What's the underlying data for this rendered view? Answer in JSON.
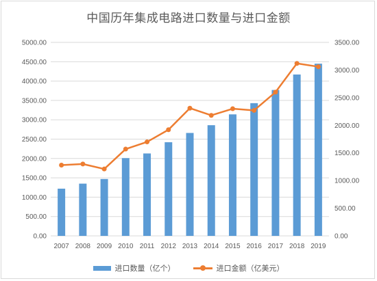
{
  "chart_data": {
    "type": "bar+line",
    "title": "中国历年集成电路进口数量与进口金额",
    "categories": [
      "2007",
      "2008",
      "2009",
      "2010",
      "2011",
      "2012",
      "2013",
      "2014",
      "2015",
      "2016",
      "2017",
      "2018",
      "2019"
    ],
    "series": [
      {
        "name": "进口数量（亿个）",
        "type": "bar",
        "axis": "left",
        "color": "#5b9bd5",
        "values": [
          1220,
          1350,
          1470,
          2010,
          2130,
          2420,
          2660,
          2860,
          3140,
          3430,
          3770,
          4170,
          4450
        ]
      },
      {
        "name": "进口金额（亿美元）",
        "type": "line",
        "axis": "right",
        "color": "#ed7d31",
        "values": [
          1280,
          1300,
          1210,
          1570,
          1700,
          1920,
          2310,
          2180,
          2300,
          2270,
          2600,
          3120,
          3060
        ]
      }
    ],
    "y_left": {
      "min": 0,
      "max": 5000,
      "step": 500,
      "tick_labels": [
        "0.00",
        "500.00",
        "1000.00",
        "1500.00",
        "2000.00",
        "2500.00",
        "3000.00",
        "3500.00",
        "4000.00",
        "4500.00",
        "5000.00"
      ]
    },
    "y_right": {
      "min": 0,
      "max": 3500,
      "step": 500,
      "tick_labels": [
        "0.00",
        "500.00",
        "1000.00",
        "1500.00",
        "2000.00",
        "2500.00",
        "3000.00",
        "3500.00"
      ]
    },
    "grid": true,
    "legend_position": "bottom"
  }
}
